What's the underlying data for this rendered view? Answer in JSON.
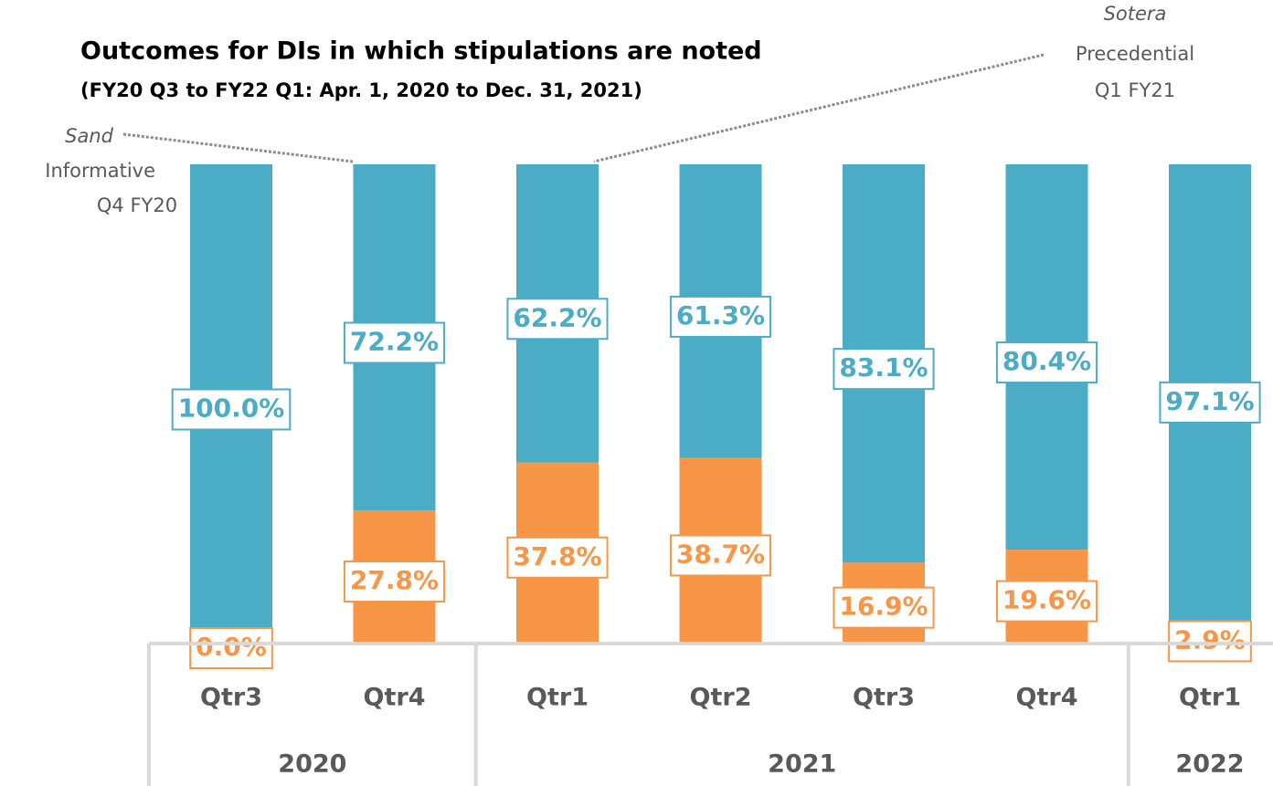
{
  "chart_data": {
    "type": "stacked_bar",
    "subtitle": "Outcomes for DIs in which stipulations are noted",
    "subtitle2": "(FY20 Q3 to FY22 Q1: Apr. 1, 2020 to Dec. 31, 2021)",
    "groups": [
      {
        "label": "2020",
        "categories": [
          "Qtr3",
          "Qtr4"
        ]
      },
      {
        "label": "2021",
        "categories": [
          "Qtr1",
          "Qtr2",
          "Qtr3",
          "Qtr4"
        ]
      },
      {
        "label": "2022",
        "categories": [
          "Qtr1"
        ]
      }
    ],
    "series": [
      {
        "color": "#f79646",
        "values": [
          0,
          27.8,
          37.8,
          38.7,
          16.9,
          19.6,
          2.9
        ],
        "value_labels": [
          "0.0%",
          "27.8%",
          "37.8%",
          "38.7%",
          "16.9%",
          "19.6%",
          "2.9%"
        ]
      },
      {
        "color": "#4bacc6",
        "values": [
          100,
          72.2,
          62.2,
          61.3,
          83.1,
          80.4,
          97.1
        ],
        "value_labels": [
          "100.0%",
          "72.2%",
          "62.2%",
          "61.3%",
          "83.1%",
          "80.4%",
          "97.1%"
        ]
      }
    ],
    "ylim": [
      0,
      100
    ],
    "annotations": [
      {
        "lines": [
          "Sand",
          "Informative",
          "Q4 FY20"
        ]
      },
      {
        "lines": [
          "Sotera",
          "Precedential",
          "Q1 FY21"
        ]
      }
    ]
  }
}
